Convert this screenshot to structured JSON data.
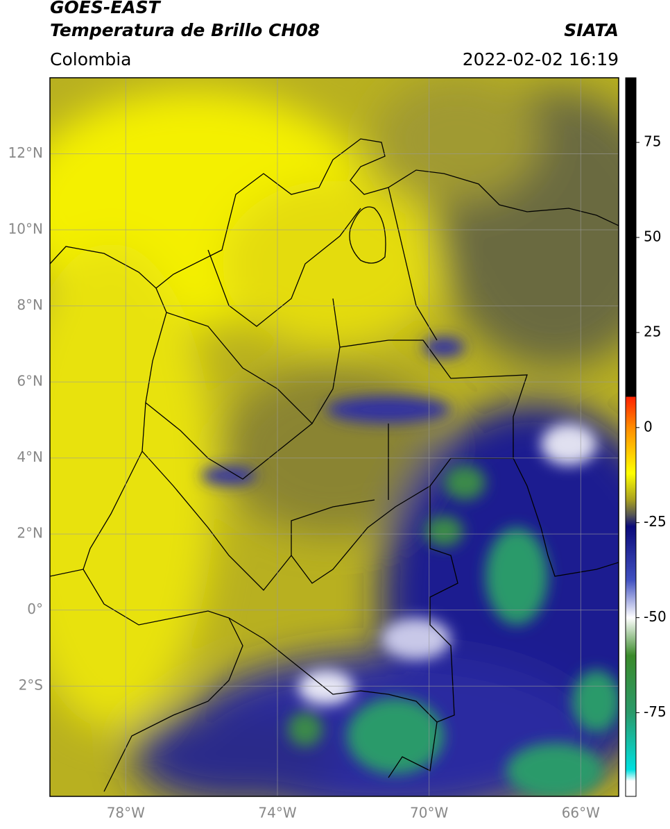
{
  "header": {
    "satellite": "GOES-EAST",
    "product": "Temperatura de Brillo CH08",
    "agency": "SIATA",
    "region": "Colombia",
    "datetime": "2022-02-02 16:19"
  },
  "map": {
    "xlim": [
      -80,
      -65
    ],
    "ylim": [
      -4.9,
      14
    ],
    "x_ticks": [
      {
        "value": -78,
        "label": "78°W"
      },
      {
        "value": -74,
        "label": "74°W"
      },
      {
        "value": -70,
        "label": "70°W"
      },
      {
        "value": -66,
        "label": "66°W"
      }
    ],
    "y_ticks": [
      {
        "value": 12,
        "label": "12°N"
      },
      {
        "value": 10,
        "label": "10°N"
      },
      {
        "value": 8,
        "label": "8°N"
      },
      {
        "value": 6,
        "label": "6°N"
      },
      {
        "value": 4,
        "label": "4°N"
      },
      {
        "value": 2,
        "label": "2°N"
      },
      {
        "value": 0,
        "label": "0°"
      },
      {
        "value": -2,
        "label": "2°S"
      }
    ]
  },
  "colorbar": {
    "lim": [
      -97,
      92
    ],
    "ticks": [
      75,
      50,
      25,
      0,
      -25,
      -50,
      -75
    ],
    "stops": [
      [
        92,
        "#000000"
      ],
      [
        8.2,
        "#000000"
      ],
      [
        8,
        "#ff2200"
      ],
      [
        0,
        "#ff8c00"
      ],
      [
        -12,
        "#ffff00"
      ],
      [
        -19,
        "#a8a020"
      ],
      [
        -23,
        "#555555"
      ],
      [
        -26,
        "#0a0a7a"
      ],
      [
        -40,
        "#4050c0"
      ],
      [
        -50,
        "#ffffff"
      ],
      [
        -60,
        "#3a8a2a"
      ],
      [
        -75,
        "#2a9a6a"
      ],
      [
        -90,
        "#00e0e0"
      ],
      [
        -93,
        "#ffffff"
      ],
      [
        -97,
        "#ffffff"
      ]
    ]
  }
}
